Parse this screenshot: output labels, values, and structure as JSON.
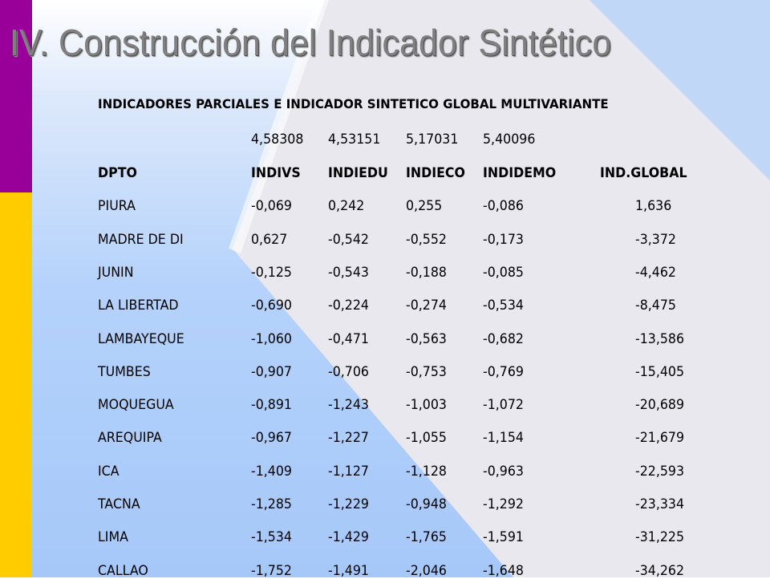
{
  "slide": {
    "title": "IV. Construcción del Indicador Sintético"
  },
  "table": {
    "title": "INDICADORES PARCIALES E INDICADOR SINTETICO GLOBAL MULTIVARIANTE",
    "weights": [
      "4,58308",
      "4,53151",
      "5,17031",
      "5,40096"
    ],
    "headers": [
      "DPTO",
      "INDIVS",
      "INDIEDU",
      "INDIECO",
      "INDIDEMO",
      "IND.GLOBAL"
    ],
    "rows": [
      [
        "PIURA",
        "-0,069",
        "0,242",
        "0,255",
        "-0,086",
        "1,636"
      ],
      [
        "MADRE DE DI",
        "0,627",
        "-0,542",
        "-0,552",
        "-0,173",
        "-3,372"
      ],
      [
        "JUNIN",
        "-0,125",
        "-0,543",
        "-0,188",
        "-0,085",
        "-4,462"
      ],
      [
        "LA LIBERTAD",
        "-0,690",
        "-0,224",
        "-0,274",
        "-0,534",
        "-8,475"
      ],
      [
        "LAMBAYEQUE",
        "-1,060",
        "-0,471",
        "-0,563",
        "-0,682",
        "-13,586"
      ],
      [
        "TUMBES",
        "-0,907",
        "-0,706",
        "-0,753",
        "-0,769",
        "-15,405"
      ],
      [
        "MOQUEGUA",
        "-0,891",
        "-1,243",
        "-1,003",
        "-1,072",
        "-20,689"
      ],
      [
        "AREQUIPA",
        "-0,967",
        "-1,227",
        "-1,055",
        "-1,154",
        "-21,679"
      ],
      [
        "ICA",
        "-1,409",
        "-1,127",
        "-1,128",
        "-0,963",
        "-22,593"
      ],
      [
        "TACNA",
        "-1,285",
        "-1,229",
        "-0,948",
        "-1,292",
        "-23,334"
      ],
      [
        "LIMA",
        "-1,534",
        "-1,429",
        "-1,765",
        "-1,591",
        "-31,225"
      ],
      [
        "CALLAO",
        "-1,752",
        "-1,491",
        "-2,046",
        "-1,648",
        "-34,262"
      ]
    ]
  }
}
